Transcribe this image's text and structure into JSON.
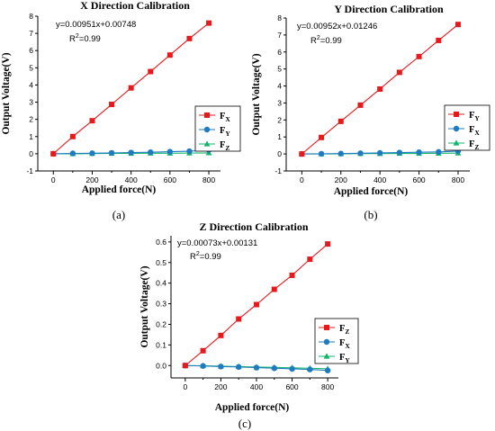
{
  "chart_data": [
    {
      "type": "line",
      "title": "X Direction Calibration",
      "xlabel": "Applied force(N)",
      "ylabel": "Output Voltage(V)",
      "equation": "y=0.00951x+0.00748",
      "r2": {
        "base": "R",
        "sup": "2",
        "rest": "=0.99"
      },
      "caption": "(a)",
      "xlim": [
        -80,
        860
      ],
      "ylim": [
        -1,
        8
      ],
      "xticks": [
        0,
        200,
        400,
        600,
        800
      ],
      "yticks": [
        -1,
        0,
        1,
        2,
        3,
        4,
        5,
        6,
        7,
        8
      ],
      "x": [
        0,
        100,
        200,
        300,
        400,
        500,
        600,
        700,
        800
      ],
      "legend_position": "right",
      "series": [
        {
          "name": "F",
          "sub": "X",
          "color": "#e8191c",
          "marker": "square",
          "values": [
            0.0,
            1.0,
            1.92,
            2.87,
            3.83,
            4.78,
            5.74,
            6.7,
            7.6
          ]
        },
        {
          "name": "F",
          "sub": "Y",
          "color": "#1f7bc0",
          "marker": "circle",
          "values": [
            0.0,
            0.02,
            0.03,
            0.05,
            0.07,
            0.09,
            0.12,
            0.15,
            0.22
          ]
        },
        {
          "name": "F",
          "sub": "Z",
          "color": "#12b36b",
          "marker": "triangle",
          "values": [
            0.0,
            0.0,
            0.01,
            0.02,
            0.02,
            0.03,
            0.03,
            0.04,
            0.05
          ]
        }
      ]
    },
    {
      "type": "line",
      "title": "Y Direction Calibration",
      "xlabel": "Applied force(N)",
      "ylabel": "Output Voltage(V)",
      "equation": "y=0.00952x+0.01246",
      "r2": {
        "base": "R",
        "sup": "2",
        "rest": "=0.99"
      },
      "caption": "(b)",
      "xlim": [
        -80,
        860
      ],
      "ylim": [
        -1,
        8
      ],
      "xticks": [
        0,
        200,
        400,
        600,
        800
      ],
      "yticks": [
        -1,
        0,
        1,
        2,
        3,
        4,
        5,
        6,
        7,
        8
      ],
      "x": [
        0,
        100,
        200,
        300,
        400,
        500,
        600,
        700,
        800
      ],
      "legend_position": "right",
      "series": [
        {
          "name": "F",
          "sub": "Y",
          "color": "#e8191c",
          "marker": "square",
          "values": [
            0.0,
            0.97,
            1.92,
            2.87,
            3.82,
            4.8,
            5.73,
            6.68,
            7.62
          ]
        },
        {
          "name": "F",
          "sub": "X",
          "color": "#1f7bc0",
          "marker": "circle",
          "values": [
            0.0,
            0.01,
            0.02,
            0.04,
            0.06,
            0.08,
            0.1,
            0.12,
            0.17
          ]
        },
        {
          "name": "F",
          "sub": "Z",
          "color": "#12b36b",
          "marker": "triangle",
          "values": [
            0.0,
            0.0,
            0.01,
            0.02,
            0.02,
            0.03,
            0.03,
            0.04,
            0.05
          ]
        }
      ]
    },
    {
      "type": "line",
      "title": "Z Direction Calibration",
      "xlabel": "Applied force(N)",
      "ylabel": "Output Voltage(V)",
      "equation": "y=0.00073x+0.00131",
      "r2": {
        "base": "R",
        "sup": "2",
        "rest": "=0.99"
      },
      "caption": "(c)",
      "xlim": [
        -80,
        860
      ],
      "ylim": [
        -0.06,
        0.63
      ],
      "xticks": [
        0,
        200,
        400,
        600,
        800
      ],
      "yticks": [
        0.0,
        0.1,
        0.2,
        0.3,
        0.4,
        0.5,
        0.6
      ],
      "ytick_labels": [
        "0.0",
        "0.1",
        "0.2",
        "0.3",
        "0.4",
        "0.5",
        "0.6"
      ],
      "x": [
        0,
        100,
        200,
        300,
        400,
        500,
        600,
        700,
        800
      ],
      "legend_position": "right",
      "series": [
        {
          "name": "F",
          "sub": "Z",
          "color": "#e8191c",
          "marker": "square",
          "values": [
            0.0,
            0.072,
            0.146,
            0.226,
            0.296,
            0.37,
            0.438,
            0.516,
            0.59
          ]
        },
        {
          "name": "F",
          "sub": "X",
          "color": "#1f7bc0",
          "marker": "circle",
          "values": [
            0.0,
            -0.002,
            -0.005,
            -0.007,
            -0.01,
            -0.013,
            -0.016,
            -0.019,
            -0.024
          ]
        },
        {
          "name": "F",
          "sub": "Y",
          "color": "#12b36b",
          "marker": "triangle",
          "values": [
            0.0,
            -0.001,
            -0.003,
            -0.005,
            -0.007,
            -0.009,
            -0.011,
            -0.013,
            -0.016
          ]
        }
      ]
    }
  ]
}
